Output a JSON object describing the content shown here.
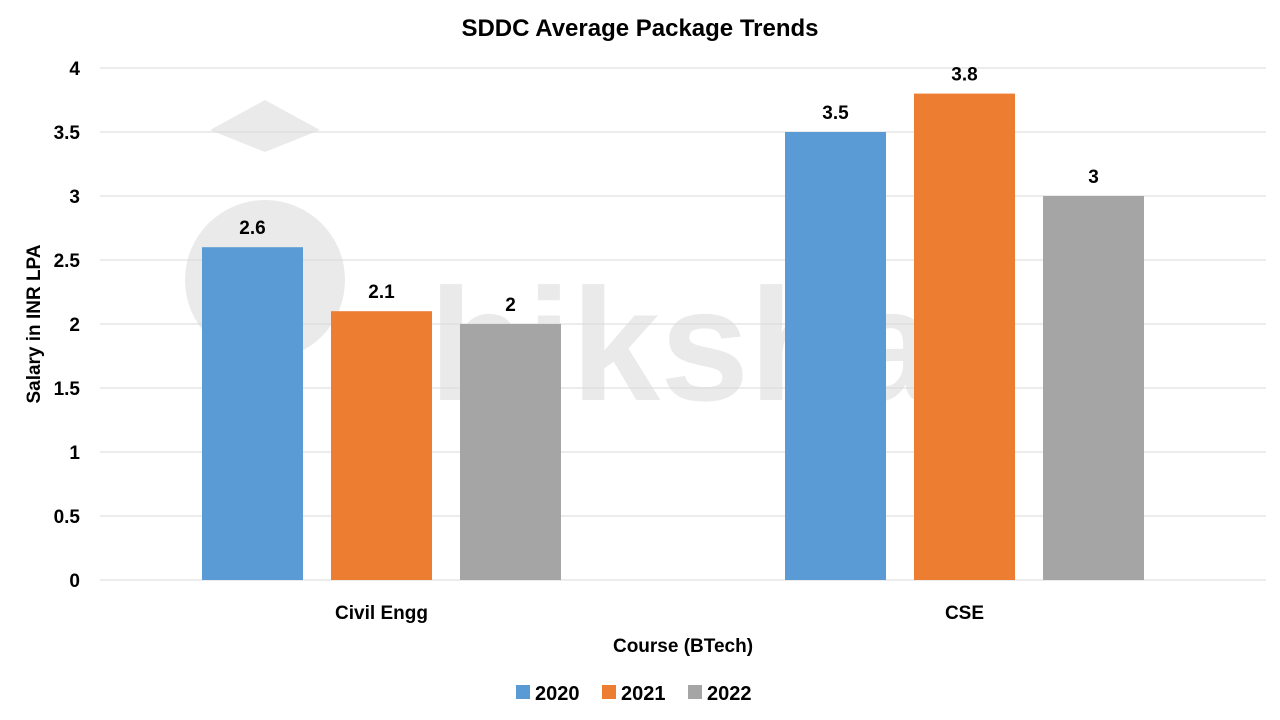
{
  "chart_data": {
    "type": "bar",
    "title": "SDDC Average Package Trends",
    "xlabel": "Course (BTech)",
    "ylabel": "Salary in INR LPA",
    "categories": [
      "Civil Engg",
      "CSE"
    ],
    "series": [
      {
        "name": "2020",
        "values": [
          2.6,
          3.5
        ],
        "color": "#5B9BD5"
      },
      {
        "name": "2021",
        "values": [
          2.1,
          3.8
        ],
        "color": "#ED7D31"
      },
      {
        "name": "2022",
        "values": [
          2,
          3
        ],
        "color": "#A5A5A5"
      }
    ],
    "ylim": [
      0,
      4
    ],
    "yticks": [
      "0",
      "0.5",
      "1",
      "1.5",
      "2",
      "2.5",
      "3",
      "3.5",
      "4"
    ],
    "data_labels": [
      [
        "2.6",
        "3.5"
      ],
      [
        "2.1",
        "3.8"
      ],
      [
        "2",
        "3"
      ]
    ],
    "grid": true,
    "legend": "bottom",
    "watermark": "shiksha"
  }
}
